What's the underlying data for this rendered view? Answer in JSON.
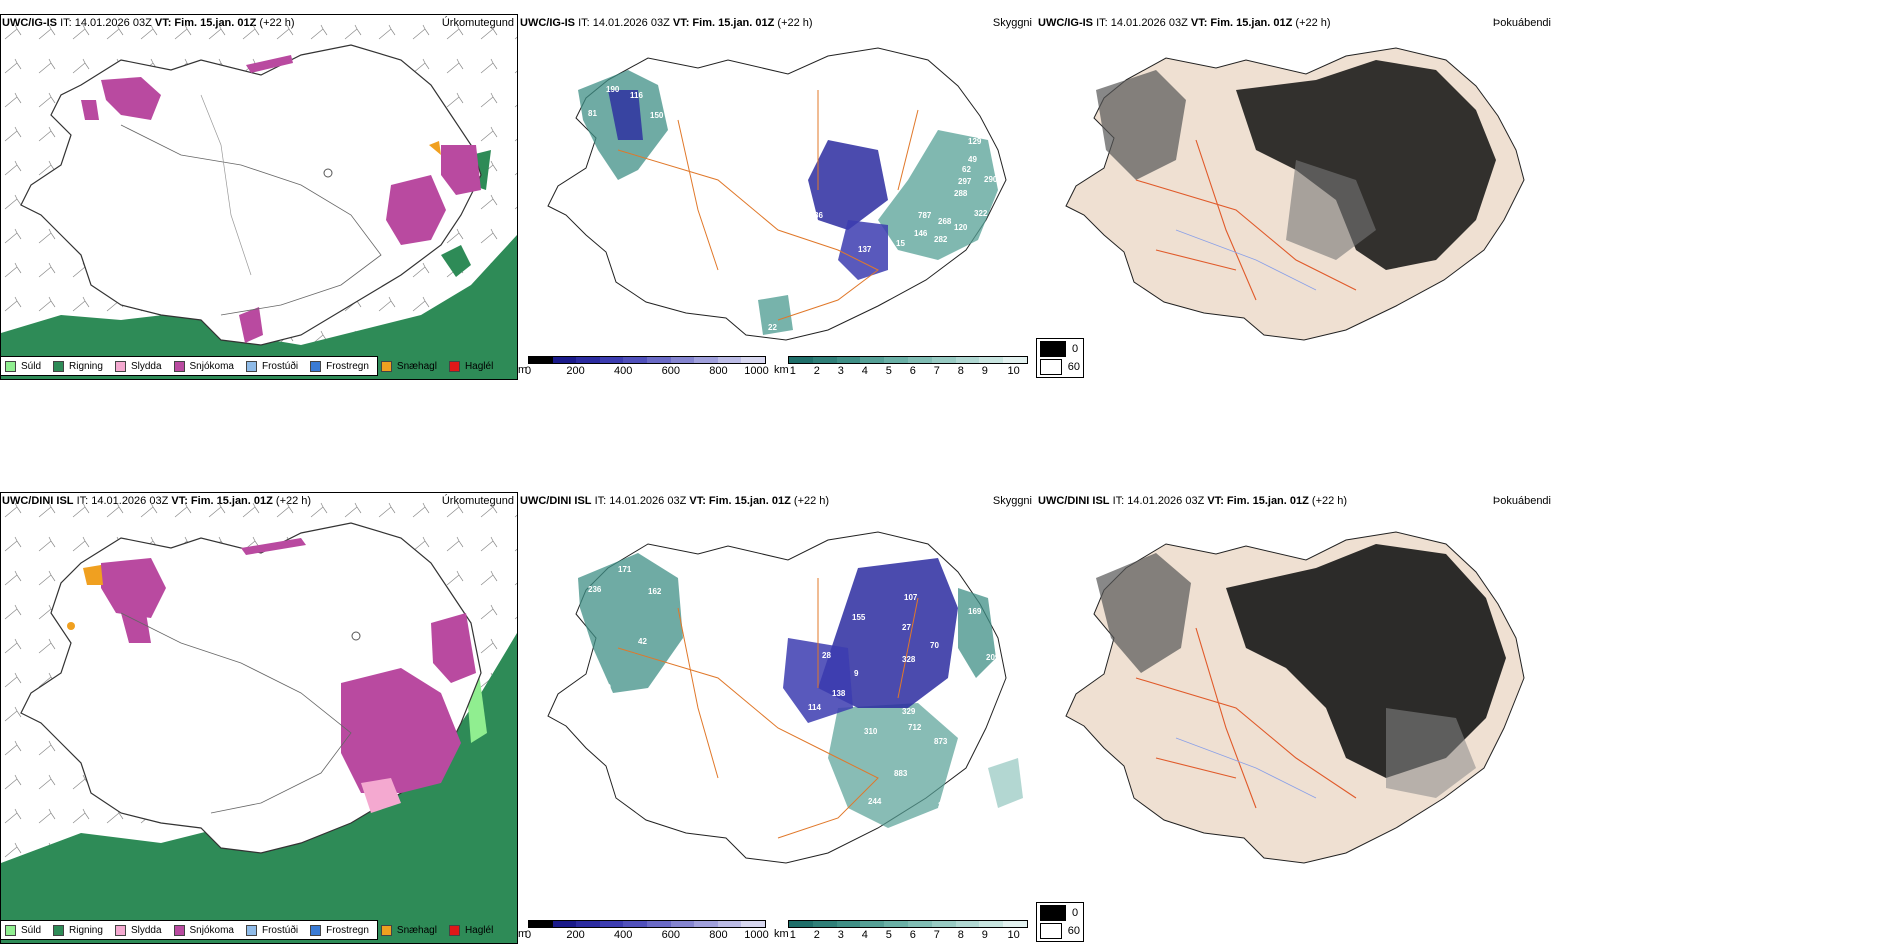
{
  "rows": [
    {
      "model": "UWC/IG-IS",
      "it": "IT: 14.01.2026 03Z",
      "vt_label": "VT:",
      "vt": "Fim. 15.jan. 01Z",
      "lead": "(+22 h)"
    },
    {
      "model": "UWC/DINI ISL",
      "it": "IT: 14.01.2026 03Z",
      "vt_label": "VT:",
      "vt": "Fim. 15.jan. 01Z",
      "lead": "(+22 h)"
    }
  ],
  "panel_titles": {
    "precip_type": "Úrkomutegund",
    "visibility": "Skyggni",
    "fog": "Þokuábendi"
  },
  "precip_legend": [
    {
      "label": "Súld",
      "color": "#90ee90"
    },
    {
      "label": "Rigning",
      "color": "#2e8b57"
    },
    {
      "label": "Slydda",
      "color": "#f4a9d0"
    },
    {
      "label": "Snjókoma",
      "color": "#b94aa0"
    },
    {
      "label": "Frostúði",
      "color": "#8fbbe8"
    },
    {
      "label": "Frostregn",
      "color": "#3a7bd5"
    },
    {
      "label": "Snæhagl",
      "color": "#f0a020"
    },
    {
      "label": "Haglél",
      "color": "#e01818"
    }
  ],
  "ceiling_scale": {
    "unit": "m",
    "ticks": [
      "0",
      "200",
      "400",
      "600",
      "800",
      "1000"
    ],
    "colors": [
      "#000000",
      "#1a1a8a",
      "#2b2ba0",
      "#3c3cb0",
      "#5050bb",
      "#6a6ac6",
      "#8585d0",
      "#a0a0dc",
      "#bcbce6",
      "#d8d8f0"
    ]
  },
  "visibility_scale": {
    "unit": "km",
    "ticks": [
      "1",
      "2",
      "3",
      "4",
      "5",
      "6",
      "7",
      "8",
      "9",
      "10"
    ],
    "colors": [
      "#1f6f6a",
      "#2f7f78",
      "#3f8f86",
      "#55a096",
      "#6ab0a6",
      "#80bdb4",
      "#98cbc3",
      "#b0d8d2",
      "#c8e5e0",
      "#e2f1ef"
    ]
  },
  "fog_scale": {
    "values": [
      "0",
      "60"
    ],
    "colors": [
      "#000000",
      "#ffffff"
    ]
  },
  "map_labels": {
    "top": [
      "190",
      "116",
      "150",
      "81",
      "107",
      "10",
      "86",
      "137",
      "15",
      "60",
      "22",
      "787",
      "146",
      "282",
      "268",
      "288",
      "297",
      "129",
      "49",
      "62",
      "290",
      "322",
      "120"
    ],
    "bottom": [
      "171",
      "162",
      "236",
      "42",
      "10",
      "114",
      "138",
      "28",
      "9",
      "155",
      "328",
      "107",
      "27",
      "169",
      "209",
      "380",
      "426",
      "712",
      "873",
      "329",
      "310",
      "883",
      "244",
      "311",
      "217",
      "70"
    ]
  }
}
